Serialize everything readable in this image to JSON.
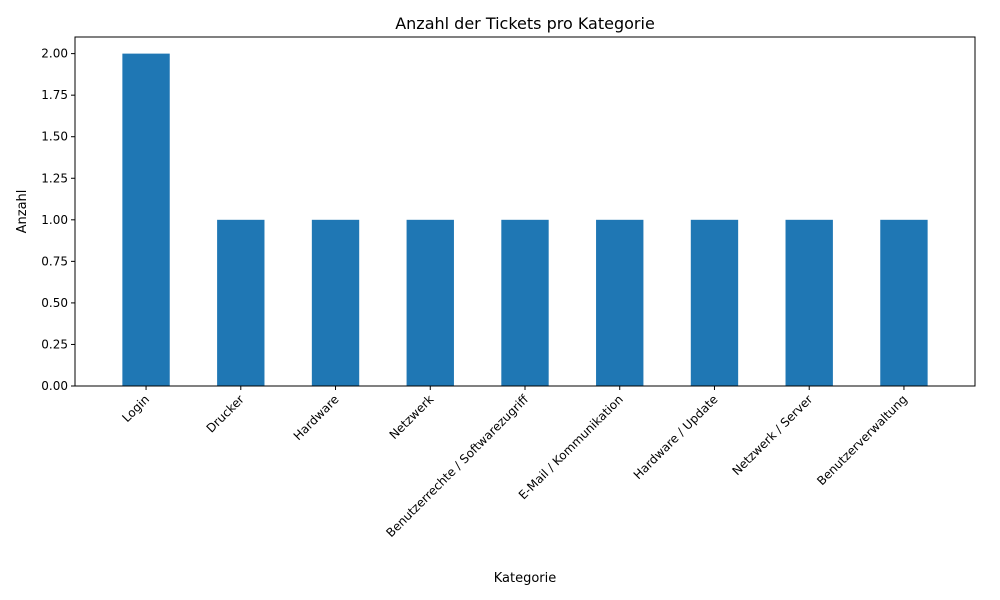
{
  "chart_data": {
    "type": "bar",
    "title": "Anzahl der Tickets pro Kategorie",
    "xlabel": "Kategorie",
    "ylabel": "Anzahl",
    "categories": [
      "Login",
      "Drucker",
      "Hardware",
      "Netzwerk",
      "Benutzerrechte / Softwarezugriff",
      "E-Mail / Kommunikation",
      "Hardware / Update",
      "Netzwerk / Server",
      "Benutzerverwaltung"
    ],
    "values": [
      2,
      1,
      1,
      1,
      1,
      1,
      1,
      1,
      1
    ],
    "ylim": [
      0,
      2.1
    ],
    "yticks": [
      "0.00",
      "0.25",
      "0.50",
      "0.75",
      "1.00",
      "1.25",
      "1.50",
      "1.75",
      "2.00"
    ],
    "grid": false,
    "legend": "none",
    "bar_color": "#1f77b4",
    "x_tick_rotation_deg": 45
  }
}
